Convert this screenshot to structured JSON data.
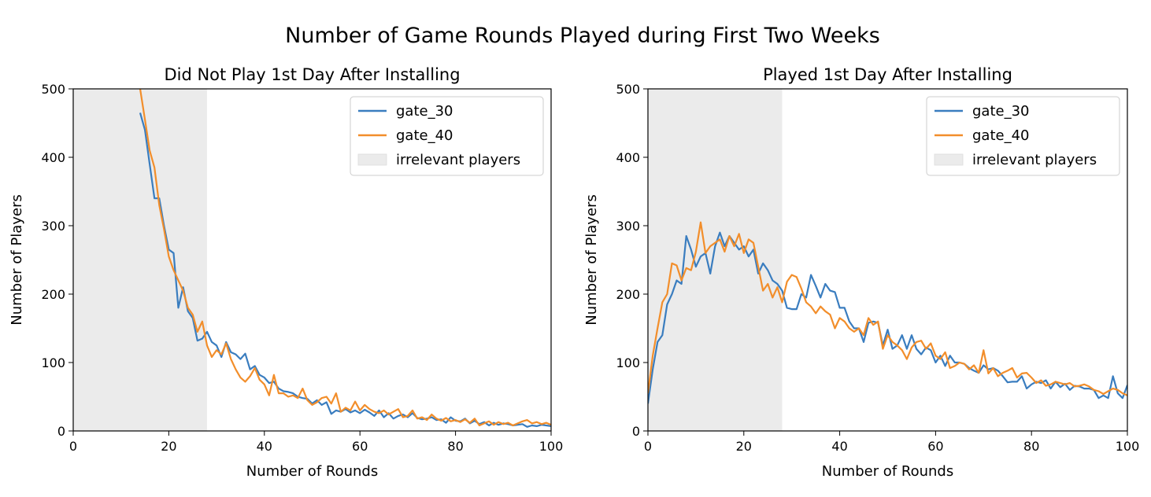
{
  "figure": {
    "title": "Number of Game Rounds Played during First Two Weeks"
  },
  "colors": {
    "gate_30": "#3a7dbf",
    "gate_40": "#f28e2b",
    "shade": "#ebebeb"
  },
  "chart_data": [
    {
      "type": "line",
      "title": "Did Not Play 1st Day After Installing",
      "xlabel": "Number of Rounds",
      "ylabel": "Number of Players",
      "xlim": [
        0,
        100
      ],
      "ylim": [
        0,
        500
      ],
      "xticks": [
        0,
        20,
        40,
        60,
        80,
        100
      ],
      "yticks": [
        0,
        100,
        200,
        300,
        400,
        500
      ],
      "legend": {
        "placement": "top-right",
        "entries": [
          "gate_30",
          "gate_40",
          "irrelevant players"
        ]
      },
      "shaded_region": {
        "label": "irrelevant players",
        "x": [
          0,
          28
        ]
      },
      "series": [
        {
          "name": "gate_30",
          "x": [
            14,
            15,
            16,
            17,
            18,
            19,
            20,
            21,
            22,
            23,
            24,
            25,
            26,
            27,
            28,
            29,
            30,
            31,
            32,
            33,
            34,
            35,
            36,
            37,
            38,
            39,
            40,
            41,
            42,
            43,
            44,
            45,
            46,
            47,
            48,
            49,
            50,
            51,
            52,
            53,
            54,
            55,
            56,
            57,
            58,
            59,
            60,
            61,
            62,
            63,
            64,
            65,
            66,
            67,
            68,
            69,
            70,
            71,
            72,
            73,
            74,
            75,
            76,
            77,
            78,
            79,
            80,
            81,
            82,
            83,
            84,
            85,
            86,
            87,
            88,
            89,
            90,
            91,
            92,
            93,
            94,
            95,
            96,
            97,
            98,
            99,
            100
          ],
          "values": [
            465,
            440,
            390,
            340,
            340,
            300,
            265,
            260,
            180,
            210,
            175,
            165,
            132,
            135,
            145,
            130,
            125,
            108,
            130,
            115,
            112,
            105,
            113,
            90,
            95,
            82,
            78,
            70,
            72,
            62,
            58,
            57,
            55,
            50,
            48,
            47,
            40,
            45,
            38,
            42,
            25,
            30,
            28,
            32,
            27,
            30,
            26,
            31,
            27,
            22,
            30,
            20,
            26,
            18,
            22,
            24,
            20,
            26,
            19,
            17,
            18,
            20,
            16,
            17,
            12,
            20,
            15,
            14,
            18,
            11,
            15,
            10,
            13,
            8,
            12,
            9,
            11,
            10,
            8,
            9,
            10,
            6,
            8,
            7,
            9,
            8,
            7
          ]
        },
        {
          "name": "gate_40",
          "x": [
            14,
            15,
            16,
            17,
            18,
            19,
            20,
            21,
            22,
            23,
            24,
            25,
            26,
            27,
            28,
            29,
            30,
            31,
            32,
            33,
            34,
            35,
            36,
            37,
            38,
            39,
            40,
            41,
            42,
            43,
            44,
            45,
            46,
            47,
            48,
            49,
            50,
            51,
            52,
            53,
            54,
            55,
            56,
            57,
            58,
            59,
            60,
            61,
            62,
            63,
            64,
            65,
            66,
            67,
            68,
            69,
            70,
            71,
            72,
            73,
            74,
            75,
            76,
            77,
            78,
            79,
            80,
            81,
            82,
            83,
            84,
            85,
            86,
            87,
            88,
            89,
            90,
            91,
            92,
            93,
            94,
            95,
            96,
            97,
            98,
            99,
            100
          ],
          "values": [
            500,
            455,
            410,
            385,
            330,
            295,
            255,
            235,
            220,
            205,
            180,
            170,
            145,
            160,
            125,
            108,
            118,
            112,
            128,
            105,
            90,
            78,
            72,
            80,
            92,
            75,
            68,
            52,
            82,
            55,
            55,
            50,
            52,
            48,
            62,
            45,
            38,
            42,
            48,
            50,
            40,
            55,
            28,
            34,
            30,
            43,
            30,
            38,
            32,
            28,
            26,
            30,
            24,
            28,
            32,
            20,
            22,
            30,
            18,
            20,
            16,
            24,
            18,
            15,
            19,
            14,
            16,
            13,
            17,
            12,
            18,
            8,
            11,
            14,
            9,
            13,
            10,
            12,
            8,
            11,
            14,
            16,
            11,
            13,
            10,
            12,
            9
          ]
        }
      ]
    },
    {
      "type": "line",
      "title": "Played 1st Day After Installing",
      "xlabel": "Number of Rounds",
      "ylabel": "Number of Players",
      "xlim": [
        0,
        100
      ],
      "ylim": [
        0,
        500
      ],
      "xticks": [
        0,
        20,
        40,
        60,
        80,
        100
      ],
      "yticks": [
        0,
        100,
        200,
        300,
        400,
        500
      ],
      "legend": {
        "placement": "top-right",
        "entries": [
          "gate_30",
          "gate_40",
          "irrelevant players"
        ]
      },
      "shaded_region": {
        "label": "irrelevant players",
        "x": [
          0,
          28
        ]
      },
      "series": [
        {
          "name": "gate_30",
          "x": [
            0,
            1,
            2,
            3,
            4,
            5,
            6,
            7,
            8,
            9,
            10,
            11,
            12,
            13,
            14,
            15,
            16,
            17,
            18,
            19,
            20,
            21,
            22,
            23,
            24,
            25,
            26,
            27,
            28,
            29,
            30,
            31,
            32,
            33,
            34,
            35,
            36,
            37,
            38,
            39,
            40,
            41,
            42,
            43,
            44,
            45,
            46,
            47,
            48,
            49,
            50,
            51,
            52,
            53,
            54,
            55,
            56,
            57,
            58,
            59,
            60,
            61,
            62,
            63,
            64,
            65,
            66,
            67,
            68,
            69,
            70,
            71,
            72,
            73,
            74,
            75,
            76,
            77,
            78,
            79,
            80,
            81,
            82,
            83,
            84,
            85,
            86,
            87,
            88,
            89,
            90,
            91,
            92,
            93,
            94,
            95,
            96,
            97,
            98,
            99,
            100
          ],
          "values": [
            40,
            90,
            130,
            140,
            185,
            200,
            220,
            215,
            285,
            265,
            240,
            255,
            260,
            230,
            270,
            290,
            270,
            285,
            275,
            265,
            270,
            255,
            265,
            230,
            245,
            235,
            220,
            215,
            205,
            180,
            178,
            178,
            200,
            195,
            228,
            212,
            195,
            215,
            205,
            203,
            180,
            180,
            160,
            150,
            150,
            130,
            158,
            160,
            158,
            125,
            148,
            120,
            125,
            140,
            120,
            140,
            120,
            112,
            122,
            118,
            100,
            110,
            95,
            110,
            100,
            100,
            98,
            92,
            88,
            85,
            96,
            90,
            92,
            88,
            80,
            71,
            72,
            72,
            80,
            62,
            68,
            72,
            70,
            74,
            62,
            72,
            64,
            69,
            60,
            66,
            65,
            62,
            62,
            60,
            48,
            52,
            48,
            80,
            55,
            48,
            67
          ]
        },
        {
          "name": "gate_40",
          "x": [
            0,
            1,
            2,
            3,
            4,
            5,
            6,
            7,
            8,
            9,
            10,
            11,
            12,
            13,
            14,
            15,
            16,
            17,
            18,
            19,
            20,
            21,
            22,
            23,
            24,
            25,
            26,
            27,
            28,
            29,
            30,
            31,
            32,
            33,
            34,
            35,
            36,
            37,
            38,
            39,
            40,
            41,
            42,
            43,
            44,
            45,
            46,
            47,
            48,
            49,
            50,
            51,
            52,
            53,
            54,
            55,
            56,
            57,
            58,
            59,
            60,
            61,
            62,
            63,
            64,
            65,
            66,
            67,
            68,
            69,
            70,
            71,
            72,
            73,
            74,
            75,
            76,
            77,
            78,
            79,
            80,
            81,
            82,
            83,
            84,
            85,
            86,
            87,
            88,
            89,
            90,
            91,
            92,
            93,
            94,
            95,
            96,
            97,
            98,
            99,
            100
          ],
          "values": [
            55,
            110,
            150,
            188,
            200,
            245,
            242,
            220,
            238,
            235,
            262,
            305,
            260,
            270,
            275,
            280,
            262,
            285,
            270,
            288,
            260,
            280,
            275,
            240,
            205,
            215,
            195,
            210,
            188,
            218,
            228,
            225,
            208,
            188,
            182,
            172,
            182,
            175,
            170,
            150,
            165,
            160,
            150,
            145,
            150,
            140,
            165,
            155,
            160,
            120,
            140,
            130,
            125,
            118,
            105,
            122,
            130,
            132,
            120,
            128,
            110,
            105,
            115,
            92,
            95,
            100,
            98,
            90,
            96,
            85,
            118,
            84,
            92,
            80,
            85,
            88,
            92,
            78,
            84,
            85,
            78,
            70,
            74,
            66,
            68,
            72,
            70,
            68,
            70,
            65,
            66,
            68,
            65,
            60,
            58,
            54,
            58,
            62,
            60,
            55,
            52
          ]
        }
      ]
    }
  ]
}
